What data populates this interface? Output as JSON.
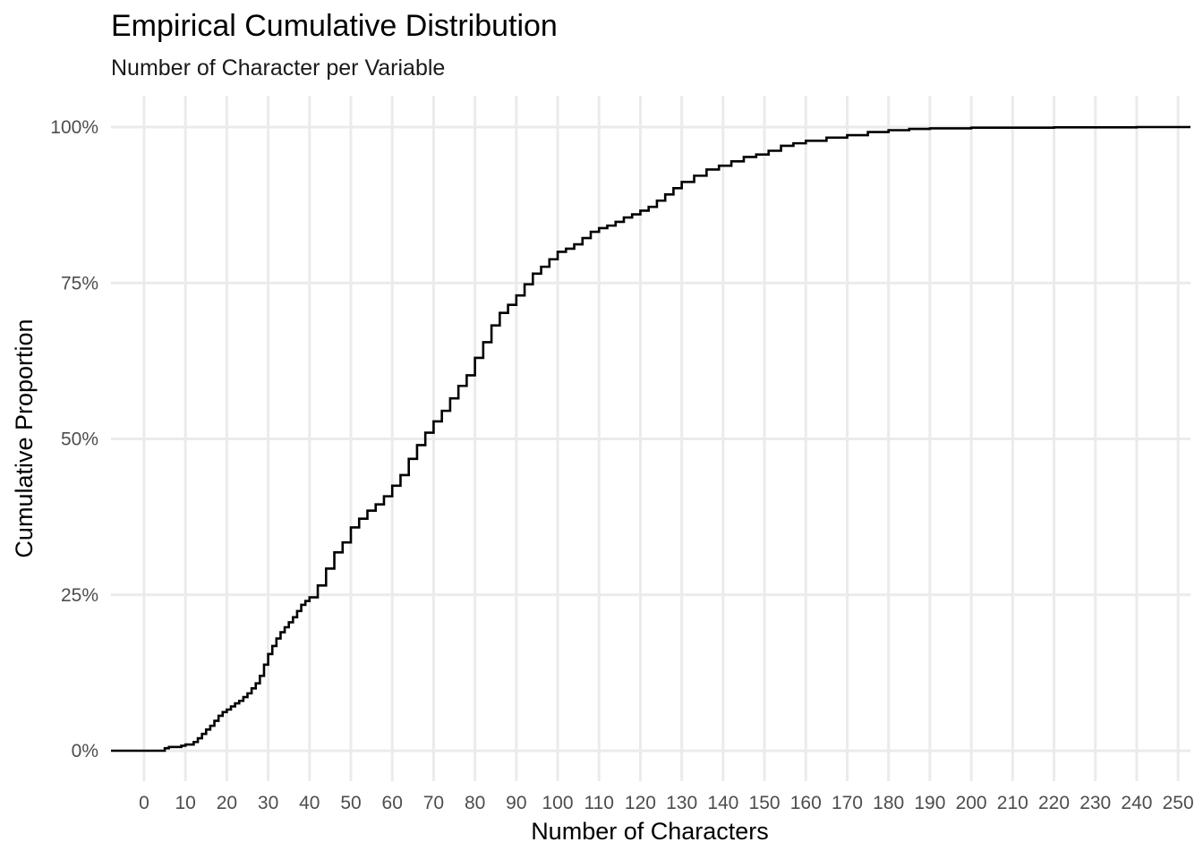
{
  "chart_data": {
    "type": "line",
    "title": "Empirical Cumulative Distribution",
    "subtitle": "Number of Character per Variable",
    "xlabel": "Number of Characters",
    "ylabel": "Cumulative Proportion",
    "xlim": [
      -8,
      253
    ],
    "ylim": [
      0,
      1
    ],
    "x_ticks": [
      0,
      10,
      20,
      30,
      40,
      50,
      60,
      70,
      80,
      90,
      100,
      110,
      120,
      130,
      140,
      150,
      160,
      170,
      180,
      190,
      200,
      210,
      220,
      230,
      240,
      250
    ],
    "x_tick_labels": [
      "0",
      "10",
      "20",
      "30",
      "40",
      "50",
      "60",
      "70",
      "80",
      "90",
      "100",
      "110",
      "120",
      "130",
      "140",
      "150",
      "160",
      "170",
      "180",
      "190",
      "200",
      "210",
      "220",
      "230",
      "240",
      "250"
    ],
    "y_ticks": [
      0,
      0.25,
      0.5,
      0.75,
      1.0
    ],
    "y_tick_labels": [
      "0%",
      "25%",
      "50%",
      "75%",
      "100%"
    ],
    "grid": true,
    "step": true,
    "series": [
      {
        "x": [
          -8,
          4,
          5,
          6,
          9,
          10,
          12,
          13,
          14,
          15,
          16,
          17,
          18,
          19,
          20,
          21,
          22,
          23,
          24,
          25,
          26,
          27,
          28,
          29,
          30,
          31,
          32,
          33,
          34,
          35,
          36,
          37,
          38,
          39,
          40,
          42,
          44,
          46,
          48,
          50,
          52,
          54,
          56,
          58,
          60,
          62,
          64,
          66,
          68,
          70,
          72,
          74,
          76,
          78,
          80,
          82,
          84,
          86,
          88,
          90,
          92,
          94,
          96,
          98,
          100,
          102,
          104,
          106,
          108,
          110,
          112,
          114,
          116,
          118,
          120,
          122,
          124,
          126,
          128,
          130,
          133,
          136,
          139,
          142,
          145,
          148,
          151,
          154,
          157,
          160,
          165,
          170,
          175,
          180,
          185,
          190,
          200,
          220,
          240,
          253
        ],
        "y": [
          0.0,
          0.0,
          0.004,
          0.006,
          0.008,
          0.01,
          0.014,
          0.02,
          0.027,
          0.034,
          0.04,
          0.048,
          0.056,
          0.062,
          0.066,
          0.071,
          0.076,
          0.08,
          0.086,
          0.092,
          0.1,
          0.108,
          0.12,
          0.138,
          0.155,
          0.168,
          0.18,
          0.19,
          0.198,
          0.206,
          0.214,
          0.224,
          0.234,
          0.24,
          0.246,
          0.265,
          0.292,
          0.318,
          0.334,
          0.358,
          0.372,
          0.385,
          0.395,
          0.408,
          0.425,
          0.442,
          0.468,
          0.49,
          0.51,
          0.528,
          0.545,
          0.565,
          0.585,
          0.602,
          0.63,
          0.655,
          0.682,
          0.702,
          0.715,
          0.73,
          0.748,
          0.765,
          0.776,
          0.788,
          0.8,
          0.805,
          0.812,
          0.822,
          0.832,
          0.838,
          0.842,
          0.848,
          0.855,
          0.86,
          0.866,
          0.872,
          0.882,
          0.892,
          0.902,
          0.912,
          0.922,
          0.932,
          0.938,
          0.945,
          0.952,
          0.956,
          0.962,
          0.97,
          0.974,
          0.978,
          0.983,
          0.987,
          0.992,
          0.995,
          0.997,
          0.998,
          0.999,
          0.9995,
          1.0,
          1.0
        ]
      }
    ]
  }
}
